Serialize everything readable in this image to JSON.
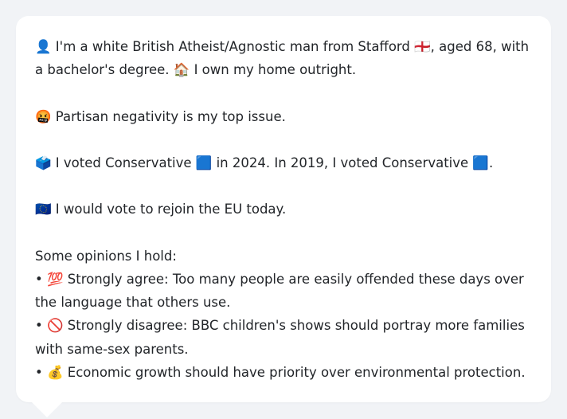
{
  "profile": {
    "intro_text": "👤 I'm a white British Atheist/Agnostic man from Stafford 🏴󠁧󠁢󠁥󠁮󠁧󠁿, aged 68, with a bachelor's degree. 🏠 I own my home outright.",
    "top_issue": "🤬 Partisan negativity is my top issue.",
    "votes": "🗳️ I voted Conservative 🟦 in 2024. In 2019, I voted Conservative 🟦.",
    "eu": "🇪🇺 I would vote to rejoin the EU today.",
    "opinions_heading": "Some opinions I hold:",
    "opinions": [
      "• 💯 Strongly agree: Too many people are easily offended these days over the language that others use.",
      "• 🚫 Strongly disagree: BBC children's shows should portray more families with same-sex parents.",
      "• 💰 Economic growth should have priority over environmental protection."
    ]
  }
}
